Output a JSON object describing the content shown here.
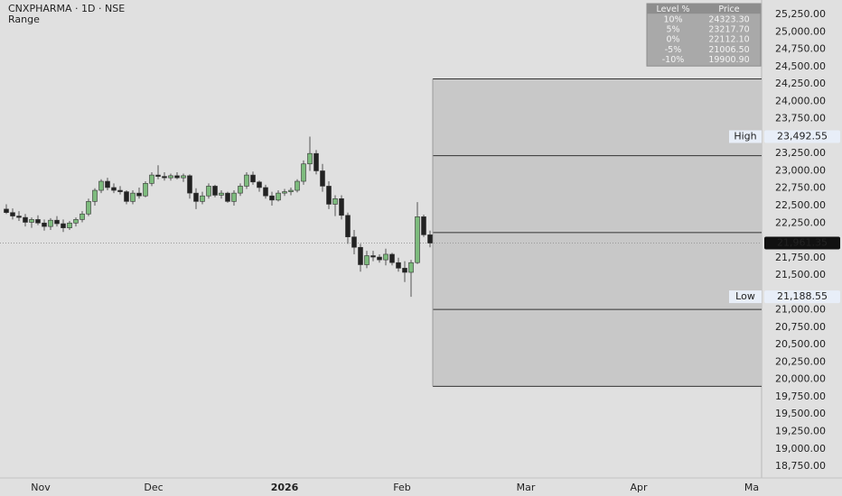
{
  "chart_data": {
    "type": "candlestick",
    "title": "CNXPHARMA · 1D · NSE",
    "subtitle": "Range",
    "ylim": [
      18582,
      25458
    ],
    "yticks": [
      {
        "value": 25250,
        "label": "25,250.00"
      },
      {
        "value": 25000,
        "label": "25,000.00"
      },
      {
        "value": 24750,
        "label": "24,750.00"
      },
      {
        "value": 24500,
        "label": "24,500.00"
      },
      {
        "value": 24250,
        "label": "24,250.00"
      },
      {
        "value": 24000,
        "label": "24,000.00"
      },
      {
        "value": 23750,
        "label": "23,750.00"
      },
      {
        "value": 23250,
        "label": "23,250.00"
      },
      {
        "value": 23000,
        "label": "23,000.00"
      },
      {
        "value": 22750,
        "label": "22,750.00"
      },
      {
        "value": 22500,
        "label": "22,500.00"
      },
      {
        "value": 22250,
        "label": "22,250.00"
      },
      {
        "value": 21750,
        "label": "21,750.00"
      },
      {
        "value": 21500,
        "label": "21,500.00"
      },
      {
        "value": 21000,
        "label": "21,000.00"
      },
      {
        "value": 20750,
        "label": "20,750.00"
      },
      {
        "value": 20500,
        "label": "20,500.00"
      },
      {
        "value": 20250,
        "label": "20,250.00"
      },
      {
        "value": 20000,
        "label": "20,000.00"
      },
      {
        "value": 19750,
        "label": "19,750.00"
      },
      {
        "value": 19500,
        "label": "19,500.00"
      },
      {
        "value": 19250,
        "label": "19,250.00"
      },
      {
        "value": 19000,
        "label": "19,000.00"
      },
      {
        "value": 18750,
        "label": "18,750.00"
      }
    ],
    "x_labels": [
      "Nov",
      "Dec",
      "2026",
      "Feb",
      "Mar",
      "Apr",
      "Ma"
    ],
    "up_color": "#7dbb7d",
    "down_color": "#222222",
    "open": [
      22450,
      22400,
      22350,
      22330,
      22260,
      22300,
      22250,
      22200,
      22290,
      22240,
      22180,
      22250,
      22300,
      22380,
      22560,
      22720,
      22850,
      22760,
      22720,
      22700,
      22560,
      22680,
      22640,
      22820,
      22940,
      22920,
      22900,
      22930,
      22900,
      22930,
      22680,
      22560,
      22640,
      22780,
      22650,
      22680,
      22560,
      22680,
      22780,
      22940,
      22840,
      22760,
      22640,
      22580,
      22680,
      22700,
      22720,
      22850,
      23100,
      23250,
      23000,
      22780,
      22520,
      22600,
      22360,
      22050,
      21900,
      21650,
      21780,
      21760,
      21720,
      21800,
      21680,
      21600,
      21540,
      21680,
      22340,
      22080
    ],
    "high": [
      22520,
      22460,
      22420,
      22380,
      22330,
      22360,
      22300,
      22320,
      22350,
      22300,
      22280,
      22330,
      22420,
      22600,
      22750,
      22880,
      22900,
      22820,
      22780,
      22720,
      22720,
      22760,
      22850,
      22980,
      23080,
      22980,
      22960,
      22980,
      22960,
      22950,
      22750,
      22700,
      22820,
      22800,
      22720,
      22700,
      22720,
      22820,
      22980,
      22990,
      22860,
      22800,
      22700,
      22720,
      22740,
      22760,
      22880,
      23150,
      23492.55,
      23300,
      23100,
      22850,
      22650,
      22650,
      22400,
      22150,
      21950,
      21850,
      21850,
      21800,
      21880,
      21820,
      21750,
      21700,
      21720,
      22550,
      22370,
      22140
    ],
    "low": [
      22380,
      22300,
      22280,
      22200,
      22180,
      22220,
      22140,
      22150,
      22200,
      22120,
      22150,
      22200,
      22260,
      22350,
      22500,
      22680,
      22720,
      22680,
      22660,
      22520,
      22520,
      22600,
      22620,
      22780,
      22880,
      22860,
      22860,
      22880,
      22840,
      22600,
      22450,
      22520,
      22600,
      22620,
      22600,
      22540,
      22500,
      22640,
      22740,
      22800,
      22700,
      22600,
      22500,
      22560,
      22640,
      22650,
      22690,
      22800,
      23000,
      22950,
      22700,
      22450,
      22350,
      22300,
      21950,
      21800,
      21550,
      21600,
      21700,
      21680,
      21640,
      21640,
      21550,
      21400,
      21188.55,
      21660,
      22050,
      21900
    ],
    "close": [
      22400,
      22350,
      22330,
      22260,
      22300,
      22250,
      22200,
      22290,
      22240,
      22180,
      22250,
      22300,
      22380,
      22560,
      22720,
      22850,
      22760,
      22720,
      22700,
      22560,
      22680,
      22640,
      22820,
      22940,
      22920,
      22900,
      22930,
      22900,
      22930,
      22680,
      22560,
      22640,
      22780,
      22650,
      22680,
      22560,
      22680,
      22780,
      22940,
      22840,
      22760,
      22640,
      22580,
      22680,
      22700,
      22720,
      22850,
      23100,
      23250,
      23000,
      22780,
      22520,
      22600,
      22360,
      22050,
      21900,
      21650,
      21780,
      21760,
      21720,
      21800,
      21680,
      21600,
      21540,
      21680,
      22340,
      22080,
      21961.35
    ],
    "levels": {
      "header": [
        "Level %",
        "Price"
      ],
      "labels": [
        "10%",
        "5%",
        "0%",
        "-5%",
        "-10%"
      ],
      "values": [
        24323.3,
        23217.7,
        22112.1,
        21006.5,
        19900.9
      ],
      "value_labels": [
        "24323.30",
        "23217.70",
        "22112.10",
        "21006.50",
        "19900.90"
      ]
    },
    "high_marker": {
      "label": "High",
      "value": 23492.55,
      "value_label": "23,492.55"
    },
    "low_marker": {
      "label": "Low",
      "value": 21188.55,
      "value_label": "21,188.55"
    },
    "last_price": {
      "value": 21961.35,
      "value_label": "21,961.35"
    }
  }
}
